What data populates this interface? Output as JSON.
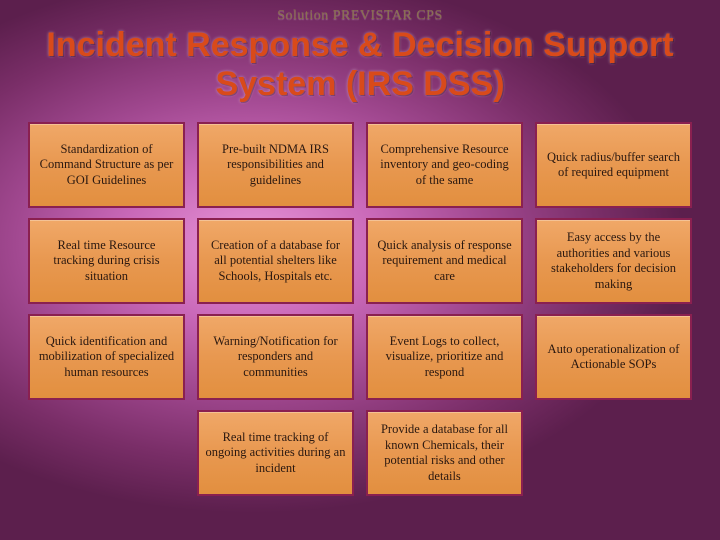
{
  "subtitle": "Solution PREVISTAR CPS",
  "title": "Incident Response & Decision Support System (IRS DSS)",
  "grid": {
    "columns": 4,
    "rows": 4,
    "cell_bg_gradient": [
      "#f0a868",
      "#e89850",
      "#e28f3f"
    ],
    "cell_border_color": "#8a2050",
    "cell_fontsize": 12.5,
    "title_color": "#d94a1a",
    "title_fontsize": 34,
    "subtitle_color": "#8a7050",
    "subtitle_fontsize": 14,
    "background_gradient": [
      "#e896d8",
      "#c968b8",
      "#a14890",
      "#7a2e68",
      "#5c1f4d"
    ],
    "cells": [
      "Standardization of Command Structure as per GOI Guidelines",
      "Pre-built NDMA IRS responsibilities and guidelines",
      "Comprehensive Resource inventory and geo-coding of the same",
      "Quick radius/buffer search of required equipment",
      "Real time Resource tracking during crisis situation",
      "Creation of a database for all potential shelters like Schools, Hospitals etc.",
      "Quick analysis of response requirement and medical care",
      "Easy access by the authorities and various stakeholders for decision making",
      "Quick identification and mobilization of specialized human resources",
      "Warning/Notification for responders and communities",
      "Event Logs to collect, visualize, prioritize and respond",
      "Auto operationalization of Actionable SOPs",
      "",
      "Real time tracking of ongoing activities during an incident",
      "Provide a database for all known Chemicals, their potential risks and other details",
      ""
    ]
  }
}
